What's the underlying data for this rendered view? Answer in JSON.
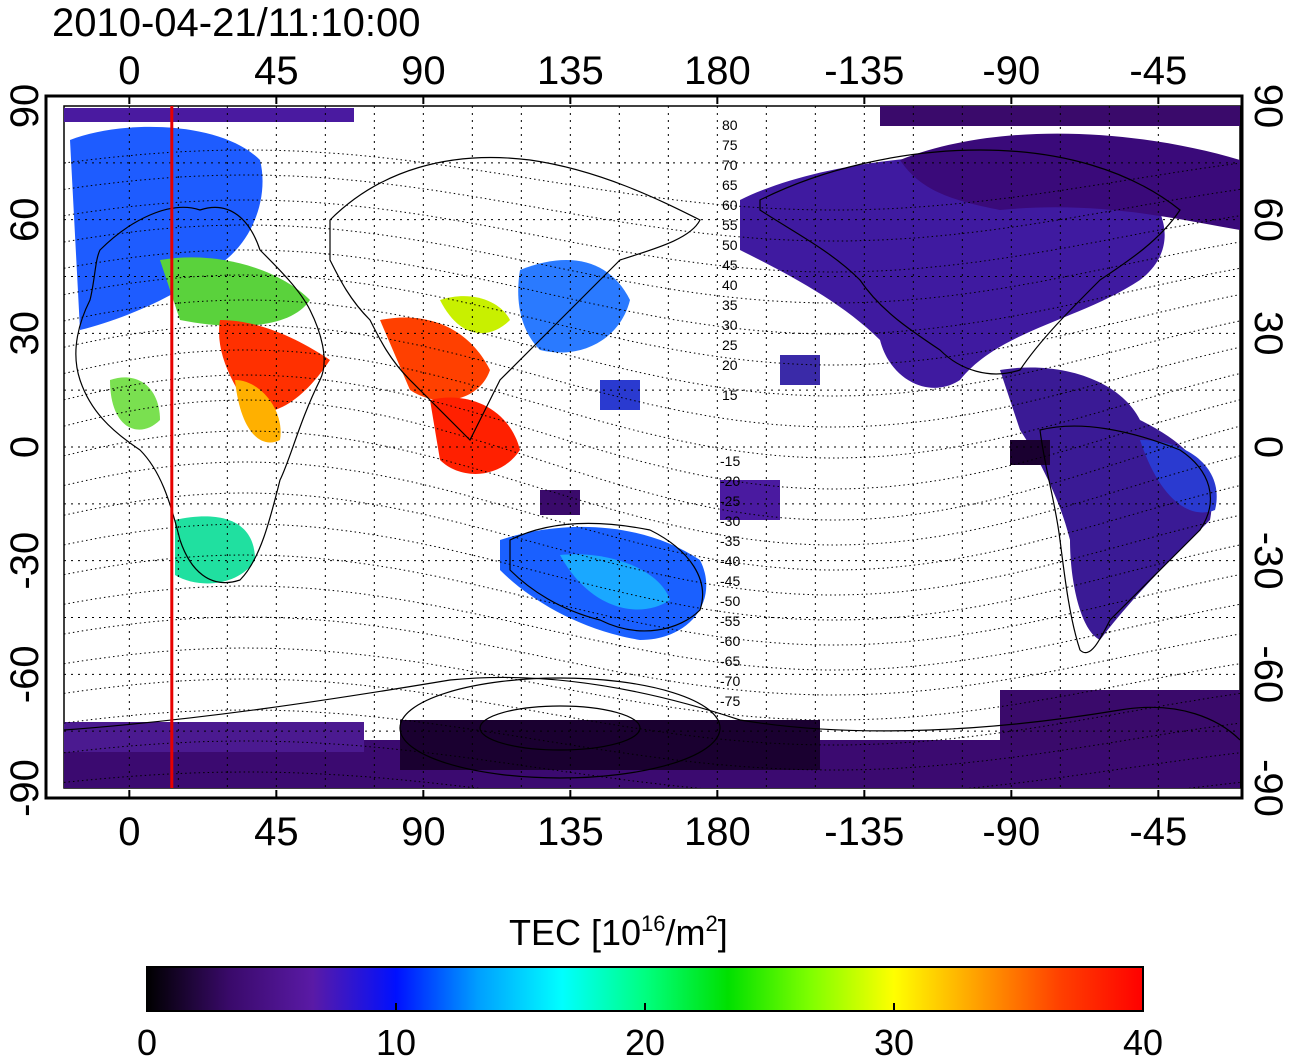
{
  "timestamp": "2010-04-21/11:10:00",
  "map": {
    "lon_ticks_top": [
      "0",
      "45",
      "90",
      "135",
      "180",
      "-135",
      "-90",
      "-45"
    ],
    "lon_ticks_bottom": [
      "0",
      "45",
      "90",
      "135",
      "180",
      "-135",
      "-90",
      "-45"
    ],
    "lat_ticks_left": [
      "90",
      "60",
      "30",
      "0",
      "-30",
      "-60",
      "-90"
    ],
    "lat_ticks_right": [
      "90",
      "60",
      "30",
      "0",
      "-30",
      "-60",
      "-90"
    ],
    "lon_range_deg": [
      -20,
      340
    ],
    "lat_range_deg": [
      -90,
      90
    ],
    "marker_longitude_deg": 13,
    "marker_color": "#e60000",
    "contour_labels": [
      "80",
      "75",
      "70",
      "65",
      "60",
      "55",
      "50",
      "45",
      "40",
      "35",
      "30",
      "25",
      "20",
      "15",
      "-15",
      "-20",
      "-25",
      "-30",
      "-35",
      "-40",
      "-45",
      "-50",
      "-55",
      "-60",
      "-65",
      "-70",
      "-75"
    ]
  },
  "colorbar": {
    "title_text": "TEC  [10",
    "title_exp1": "16",
    "title_mid": "/m",
    "title_exp2": "2",
    "title_end": "]",
    "range": [
      0,
      40
    ],
    "tick_labels": [
      "0",
      "10",
      "20",
      "30",
      "40"
    ],
    "colormap": [
      "#000000",
      "#3a0a6b",
      "#5a1aa6",
      "#0010ff",
      "#00a0ff",
      "#00ffff",
      "#00ff80",
      "#00e000",
      "#80ff00",
      "#ffff00",
      "#ffa000",
      "#ff4000",
      "#ff0000"
    ]
  }
}
